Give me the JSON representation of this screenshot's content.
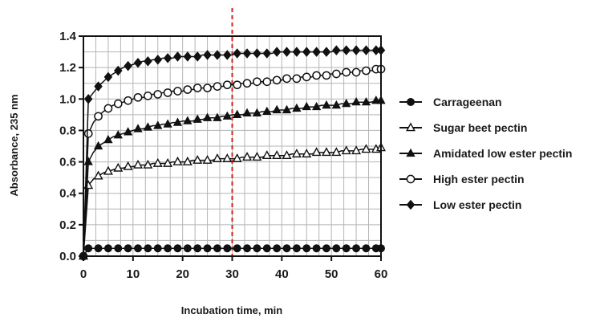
{
  "chart_data": {
    "type": "line",
    "title": "",
    "xlabel": "Incubation time, min",
    "ylabel": "Absorbance, 235 nm",
    "xlim": [
      0,
      60
    ],
    "ylim": [
      0,
      1.4
    ],
    "x_ticks": [
      0,
      10,
      20,
      30,
      40,
      50,
      60
    ],
    "y_ticks": [
      0.0,
      0.2,
      0.4,
      0.6,
      0.8,
      1.0,
      1.2,
      1.4
    ],
    "x_tick_labels": [
      "0",
      "10",
      "20",
      "30",
      "40",
      "50",
      "60"
    ],
    "y_tick_labels": [
      "0.0",
      "0.2",
      "0.4",
      "0.6",
      "0.8",
      "1.0",
      "1.2",
      "1.4"
    ],
    "grid": true,
    "legend_position": "right",
    "reference_line": {
      "x": 30,
      "color": "#d62020",
      "style": "dashed"
    },
    "x": [
      0,
      1,
      2,
      3,
      4,
      5,
      6,
      7,
      8,
      9,
      10,
      11,
      12,
      13,
      14,
      15,
      16,
      17,
      18,
      19,
      20,
      21,
      22,
      23,
      24,
      25,
      26,
      27,
      28,
      29,
      30,
      31,
      32,
      33,
      34,
      35,
      36,
      37,
      38,
      39,
      40,
      41,
      42,
      43,
      44,
      45,
      46,
      47,
      48,
      49,
      50,
      51,
      52,
      53,
      54,
      55,
      56,
      57,
      58,
      59,
      60
    ],
    "series": [
      {
        "name": "Carrageenan",
        "marker": "filled-circle",
        "values": [
          0,
          0.05,
          0.05,
          0.05,
          0.05,
          0.05,
          0.05,
          0.05,
          0.05,
          0.05,
          0.05,
          0.05,
          0.05,
          0.05,
          0.05,
          0.05,
          0.05,
          0.05,
          0.05,
          0.05,
          0.05,
          0.05,
          0.05,
          0.05,
          0.05,
          0.05,
          0.05,
          0.05,
          0.05,
          0.05,
          0.05,
          0.05,
          0.05,
          0.05,
          0.05,
          0.05,
          0.05,
          0.05,
          0.05,
          0.05,
          0.05,
          0.05,
          0.05,
          0.05,
          0.05,
          0.05,
          0.05,
          0.05,
          0.05,
          0.05,
          0.05,
          0.05,
          0.05,
          0.05,
          0.05,
          0.05,
          0.05,
          0.05,
          0.05,
          0.05,
          0.05
        ]
      },
      {
        "name": "Sugar beet pectin",
        "marker": "open-triangle",
        "values": [
          0,
          0.45,
          0.49,
          0.51,
          0.53,
          0.54,
          0.55,
          0.56,
          0.56,
          0.57,
          0.57,
          0.58,
          0.58,
          0.58,
          0.59,
          0.59,
          0.59,
          0.59,
          0.6,
          0.6,
          0.6,
          0.6,
          0.61,
          0.61,
          0.61,
          0.61,
          0.61,
          0.62,
          0.62,
          0.62,
          0.62,
          0.62,
          0.63,
          0.63,
          0.63,
          0.63,
          0.63,
          0.64,
          0.64,
          0.64,
          0.64,
          0.64,
          0.65,
          0.65,
          0.65,
          0.65,
          0.65,
          0.66,
          0.66,
          0.66,
          0.66,
          0.66,
          0.67,
          0.67,
          0.67,
          0.67,
          0.68,
          0.68,
          0.68,
          0.68,
          0.69
        ]
      },
      {
        "name": "Amidated low ester pectin",
        "marker": "filled-triangle",
        "values": [
          0,
          0.6,
          0.66,
          0.7,
          0.72,
          0.74,
          0.76,
          0.77,
          0.78,
          0.79,
          0.8,
          0.81,
          0.81,
          0.82,
          0.83,
          0.83,
          0.84,
          0.84,
          0.85,
          0.85,
          0.86,
          0.86,
          0.86,
          0.87,
          0.87,
          0.88,
          0.88,
          0.88,
          0.89,
          0.89,
          0.9,
          0.9,
          0.9,
          0.91,
          0.91,
          0.91,
          0.92,
          0.92,
          0.92,
          0.93,
          0.93,
          0.93,
          0.94,
          0.94,
          0.94,
          0.95,
          0.95,
          0.95,
          0.96,
          0.96,
          0.96,
          0.96,
          0.97,
          0.97,
          0.97,
          0.98,
          0.98,
          0.98,
          0.98,
          0.99,
          0.99
        ]
      },
      {
        "name": "High ester pectin",
        "marker": "open-circle",
        "values": [
          0,
          0.78,
          0.85,
          0.89,
          0.92,
          0.94,
          0.96,
          0.97,
          0.98,
          0.99,
          1.0,
          1.01,
          1.01,
          1.02,
          1.03,
          1.03,
          1.04,
          1.04,
          1.05,
          1.05,
          1.05,
          1.06,
          1.06,
          1.07,
          1.07,
          1.07,
          1.08,
          1.08,
          1.08,
          1.09,
          1.09,
          1.09,
          1.1,
          1.1,
          1.1,
          1.11,
          1.11,
          1.11,
          1.12,
          1.12,
          1.12,
          1.13,
          1.13,
          1.13,
          1.14,
          1.14,
          1.14,
          1.15,
          1.15,
          1.15,
          1.16,
          1.16,
          1.16,
          1.17,
          1.17,
          1.17,
          1.18,
          1.18,
          1.18,
          1.19,
          1.19
        ]
      },
      {
        "name": "Low ester pectin",
        "marker": "filled-diamond",
        "values": [
          0,
          1.0,
          1.04,
          1.08,
          1.11,
          1.14,
          1.16,
          1.18,
          1.2,
          1.21,
          1.22,
          1.23,
          1.24,
          1.24,
          1.25,
          1.25,
          1.26,
          1.26,
          1.26,
          1.27,
          1.27,
          1.27,
          1.27,
          1.27,
          1.28,
          1.28,
          1.28,
          1.28,
          1.28,
          1.28,
          1.28,
          1.29,
          1.29,
          1.29,
          1.29,
          1.29,
          1.29,
          1.29,
          1.29,
          1.3,
          1.3,
          1.3,
          1.3,
          1.3,
          1.3,
          1.3,
          1.3,
          1.3,
          1.3,
          1.3,
          1.3,
          1.31,
          1.31,
          1.31,
          1.31,
          1.31,
          1.31,
          1.31,
          1.31,
          1.31,
          1.31
        ]
      }
    ]
  }
}
